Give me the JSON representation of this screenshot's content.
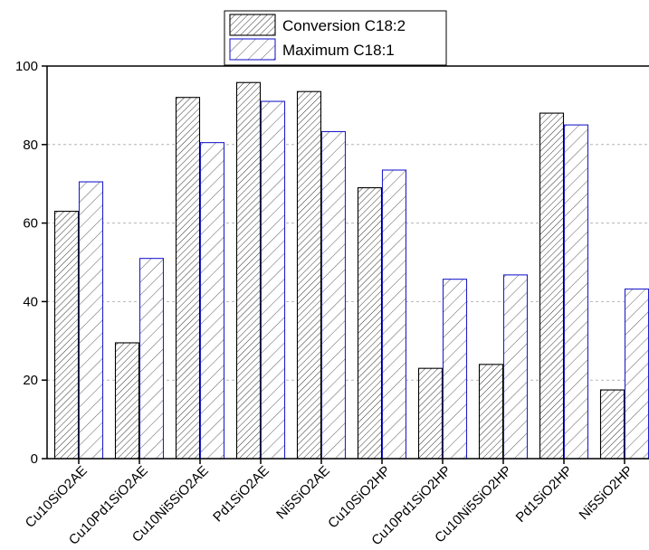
{
  "chart_data": {
    "type": "bar",
    "categories": [
      "Cu10SiO2AE",
      "Cu10Pd1SiO2AE",
      "Cu10Ni5SiO2AE",
      "Pd1SiO2AE",
      "Ni5SiO2AE",
      "Cu10SiO2HP",
      "Cu10Pd1SiO2HP",
      "Cu10Ni5SiO2HP",
      "Pd1SiO2HP",
      "Ni5SiO2HP"
    ],
    "series": [
      {
        "name": "Conversion C18:2",
        "values": [
          63,
          29.5,
          92,
          95.8,
          93.5,
          69,
          23,
          24,
          88,
          17.5
        ],
        "color": "#000000",
        "pattern": "dense-hatch"
      },
      {
        "name": "Maximum C18:1",
        "values": [
          70.5,
          51,
          80.5,
          91,
          83.3,
          73.5,
          45.7,
          46.8,
          85,
          43.2
        ],
        "color": "#1f1fcc",
        "pattern": "sparse-hatch"
      }
    ],
    "ylim": [
      0,
      100
    ],
    "yticks": [
      0,
      20,
      40,
      60,
      80,
      100
    ],
    "grid": "horizontal-dashed",
    "legend_position": "top-center",
    "title": "",
    "xlabel": "",
    "ylabel": ""
  }
}
